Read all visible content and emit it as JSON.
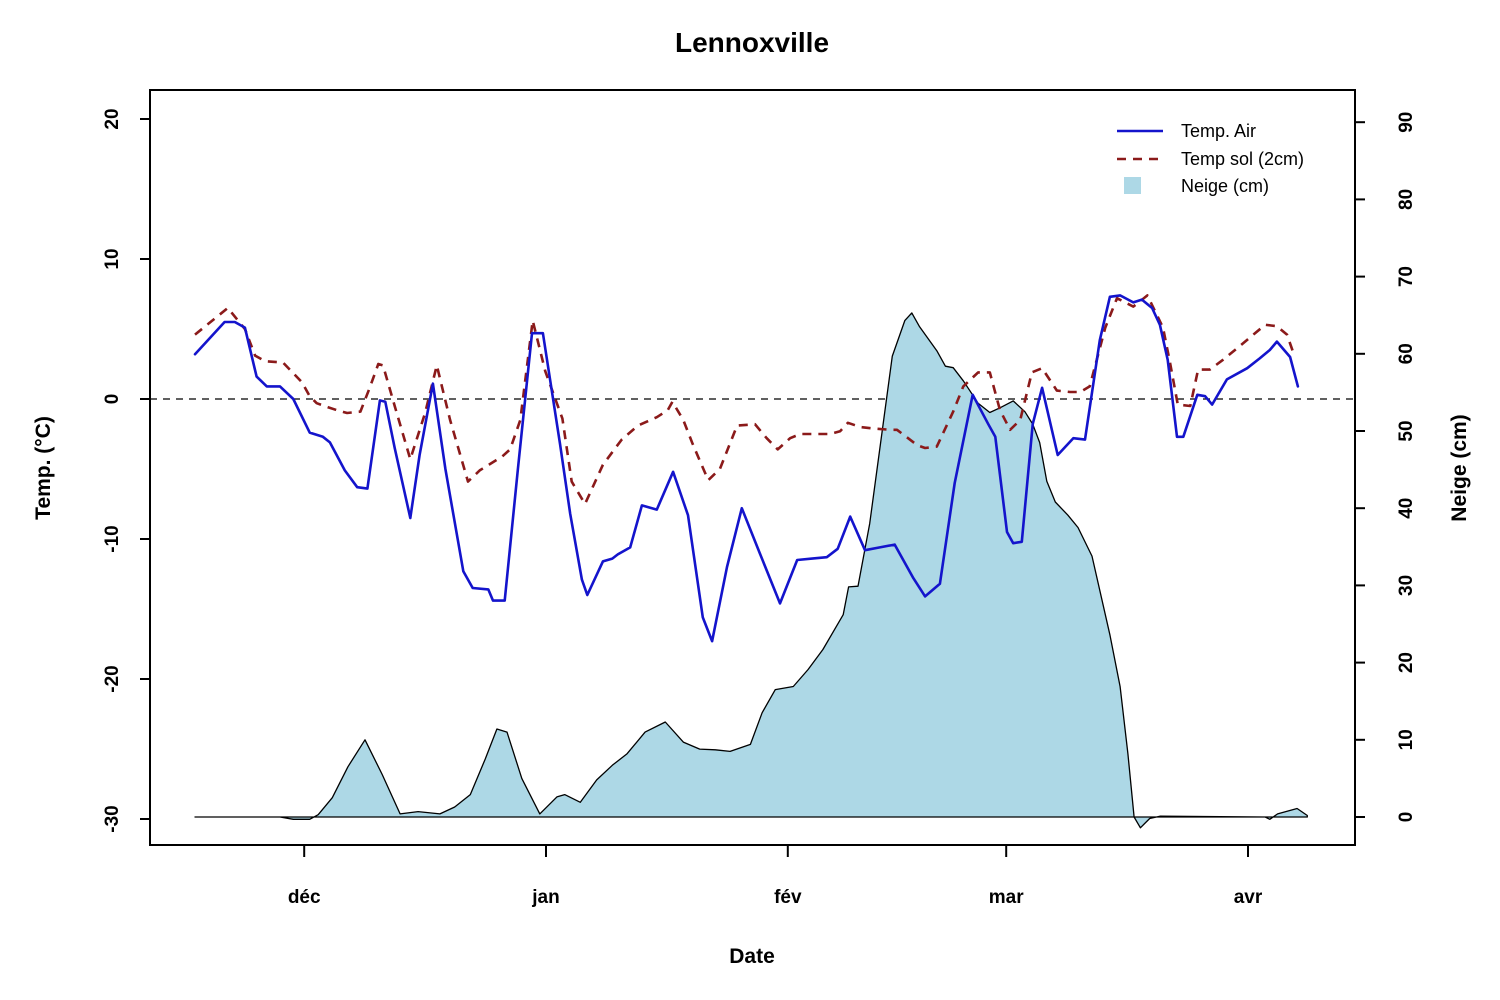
{
  "page": {
    "title": "Lennoxville"
  },
  "chart_data": {
    "type": "line",
    "title": "Lennoxville",
    "xlabel": "Date",
    "ylabel_left": "Temp. (°C)",
    "ylabel_right": "Neige (cm)",
    "x_unit": "days from series start (mid-November) to early April",
    "x_range_days": [
      0,
      143
    ],
    "x_ticks": [
      {
        "day": 14,
        "label": "déc"
      },
      {
        "day": 45,
        "label": "jan"
      },
      {
        "day": 76,
        "label": "fév"
      },
      {
        "day": 104,
        "label": "mar"
      },
      {
        "day": 135,
        "label": "avr"
      }
    ],
    "y_left": {
      "min": -30,
      "max": 20,
      "ticks": [
        20,
        10,
        0,
        -10,
        -20,
        -30
      ]
    },
    "y_right": {
      "min": 0,
      "max": 90,
      "ticks": [
        90,
        80,
        70,
        60,
        50,
        40,
        30,
        20,
        10,
        0
      ]
    },
    "zero_reference_line": {
      "axis": "left",
      "value": 0,
      "style": "dashed",
      "color": "#000000"
    },
    "grid": "off",
    "legend_position": "top-right-inside",
    "series": [
      {
        "name": "Temp. Air",
        "axis": "left",
        "style": "solid",
        "color": "#1414cc",
        "points": [
          [
            0,
            3.2
          ],
          [
            3.8,
            5.5
          ],
          [
            5.1,
            5.5
          ],
          [
            6.4,
            5.1
          ],
          [
            7.9,
            1.6
          ],
          [
            9.2,
            0.9
          ],
          [
            10.9,
            0.9
          ],
          [
            12.6,
            0.0
          ],
          [
            14.7,
            -2.4
          ],
          [
            16.4,
            -2.7
          ],
          [
            17.3,
            -3.1
          ],
          [
            19.2,
            -5.1
          ],
          [
            20.8,
            -6.3
          ],
          [
            22.1,
            -6.4
          ],
          [
            23.7,
            -0.1
          ],
          [
            24.4,
            -0.2
          ],
          [
            25.6,
            -3.5
          ],
          [
            27.6,
            -8.5
          ],
          [
            28.8,
            -4.0
          ],
          [
            30.5,
            1.1
          ],
          [
            32.1,
            -5.0
          ],
          [
            34.4,
            -12.3
          ],
          [
            35.6,
            -13.5
          ],
          [
            37.6,
            -13.6
          ],
          [
            38.2,
            -14.4
          ],
          [
            39.7,
            -14.4
          ],
          [
            41.4,
            -5.0
          ],
          [
            43.2,
            4.7
          ],
          [
            44.6,
            4.7
          ],
          [
            46.8,
            -3.2
          ],
          [
            48.1,
            -8.2
          ],
          [
            49.6,
            -12.9
          ],
          [
            50.3,
            -14.0
          ],
          [
            52.3,
            -11.6
          ],
          [
            53.5,
            -11.4
          ],
          [
            54.2,
            -11.1
          ],
          [
            55.8,
            -10.6
          ],
          [
            57.3,
            -7.6
          ],
          [
            59.2,
            -7.9
          ],
          [
            61.3,
            -5.2
          ],
          [
            63.2,
            -8.3
          ],
          [
            65.1,
            -15.6
          ],
          [
            66.3,
            -17.3
          ],
          [
            68.2,
            -12.0
          ],
          [
            70.1,
            -7.8
          ],
          [
            72.4,
            -11.0
          ],
          [
            75.0,
            -14.6
          ],
          [
            77.2,
            -11.5
          ],
          [
            79.1,
            -11.4
          ],
          [
            81.0,
            -11.3
          ],
          [
            82.4,
            -10.7
          ],
          [
            84.0,
            -8.4
          ],
          [
            85.9,
            -10.8
          ],
          [
            87.8,
            -10.6
          ],
          [
            89.7,
            -10.4
          ],
          [
            92.1,
            -12.8
          ],
          [
            93.6,
            -14.1
          ],
          [
            95.5,
            -13.2
          ],
          [
            97.4,
            -6.0
          ],
          [
            99.7,
            0.3
          ],
          [
            101.7,
            -1.8
          ],
          [
            102.6,
            -2.7
          ],
          [
            104.1,
            -9.5
          ],
          [
            104.9,
            -10.3
          ],
          [
            106.0,
            -10.2
          ],
          [
            107.4,
            -1.8
          ],
          [
            108.6,
            0.8
          ],
          [
            110.6,
            -4.0
          ],
          [
            112.6,
            -2.8
          ],
          [
            114.1,
            -2.9
          ],
          [
            116.0,
            4.2
          ],
          [
            117.3,
            7.3
          ],
          [
            118.6,
            7.4
          ],
          [
            120.3,
            6.9
          ],
          [
            121.4,
            7.1
          ],
          [
            122.7,
            6.5
          ],
          [
            123.7,
            5.3
          ],
          [
            124.7,
            2.8
          ],
          [
            125.9,
            -2.7
          ],
          [
            126.7,
            -2.7
          ],
          [
            128.5,
            0.3
          ],
          [
            129.5,
            0.2
          ],
          [
            130.4,
            -0.4
          ],
          [
            132.3,
            1.4
          ],
          [
            134.9,
            2.2
          ],
          [
            136.5,
            2.9
          ],
          [
            137.8,
            3.5
          ],
          [
            138.7,
            4.1
          ],
          [
            140.4,
            3.0
          ],
          [
            141.4,
            0.9
          ]
        ]
      },
      {
        "name": "Temp sol (2cm)",
        "axis": "left",
        "style": "dashed",
        "color": "#8b1a1a",
        "points": [
          [
            0,
            4.6
          ],
          [
            4.2,
            6.5
          ],
          [
            6.4,
            5.0
          ],
          [
            7.7,
            3.1
          ],
          [
            9.0,
            2.7
          ],
          [
            11.3,
            2.6
          ],
          [
            13.7,
            1.2
          ],
          [
            14.7,
            0.2
          ],
          [
            15.6,
            -0.3
          ],
          [
            17.1,
            -0.6
          ],
          [
            18.2,
            -0.8
          ],
          [
            19.5,
            -1.0
          ],
          [
            21.2,
            -0.9
          ],
          [
            22.4,
            0.8
          ],
          [
            23.5,
            2.5
          ],
          [
            24.1,
            2.4
          ],
          [
            25.6,
            -0.5
          ],
          [
            27.6,
            -4.3
          ],
          [
            29.5,
            -1.0
          ],
          [
            31.0,
            2.4
          ],
          [
            32.7,
            -1.5
          ],
          [
            35.0,
            -5.9
          ],
          [
            36.5,
            -5.1
          ],
          [
            39.4,
            -4.1
          ],
          [
            40.4,
            -3.6
          ],
          [
            41.7,
            -1.5
          ],
          [
            43.3,
            5.6
          ],
          [
            44.9,
            2.0
          ],
          [
            47.1,
            -1.4
          ],
          [
            48.3,
            -5.9
          ],
          [
            50.0,
            -7.5
          ],
          [
            52.3,
            -4.7
          ],
          [
            54.7,
            -2.9
          ],
          [
            56.8,
            -1.9
          ],
          [
            59.2,
            -1.3
          ],
          [
            60.6,
            -0.8
          ],
          [
            61.2,
            -0.2
          ],
          [
            62.6,
            -1.5
          ],
          [
            63.8,
            -3.2
          ],
          [
            65.8,
            -5.8
          ],
          [
            67.3,
            -5.0
          ],
          [
            69.5,
            -1.9
          ],
          [
            71.8,
            -1.8
          ],
          [
            73.3,
            -2.8
          ],
          [
            74.7,
            -3.6
          ],
          [
            76.3,
            -2.8
          ],
          [
            77.6,
            -2.5
          ],
          [
            81.4,
            -2.5
          ],
          [
            82.7,
            -2.3
          ],
          [
            83.7,
            -1.7
          ],
          [
            85.3,
            -2.0
          ],
          [
            86.9,
            -2.1
          ],
          [
            89.1,
            -2.2
          ],
          [
            90.0,
            -2.2
          ],
          [
            92.6,
            -3.3
          ],
          [
            93.6,
            -3.5
          ],
          [
            95.1,
            -3.4
          ],
          [
            97.2,
            -0.9
          ],
          [
            98.5,
            0.9
          ],
          [
            100.4,
            1.9
          ],
          [
            101.9,
            1.9
          ],
          [
            103.2,
            -0.8
          ],
          [
            104.5,
            -2.2
          ],
          [
            105.8,
            -1.5
          ],
          [
            107.3,
            1.9
          ],
          [
            108.6,
            2.2
          ],
          [
            110.5,
            0.6
          ],
          [
            112.2,
            0.5
          ],
          [
            113.5,
            0.5
          ],
          [
            114.7,
            0.9
          ],
          [
            116.7,
            5.1
          ],
          [
            118.2,
            7.2
          ],
          [
            120.3,
            6.6
          ],
          [
            122.1,
            7.4
          ],
          [
            124.1,
            5.1
          ],
          [
            125.0,
            2.6
          ],
          [
            126.0,
            -0.4
          ],
          [
            127.6,
            -0.5
          ],
          [
            128.6,
            2.1
          ],
          [
            130.1,
            2.1
          ],
          [
            131.8,
            2.8
          ],
          [
            134.2,
            3.9
          ],
          [
            135.9,
            4.7
          ],
          [
            137.2,
            5.3
          ],
          [
            138.7,
            5.2
          ],
          [
            140.0,
            4.6
          ],
          [
            141.0,
            3.0
          ]
        ]
      },
      {
        "name": "Neige (cm)",
        "axis": "right",
        "style": "filled-area",
        "color": "#add8e6",
        "outline_color": "#000000",
        "points": [
          [
            0,
            0
          ],
          [
            10.9,
            0
          ],
          [
            12.6,
            -0.3
          ],
          [
            14.7,
            -0.3
          ],
          [
            15.8,
            0.3
          ],
          [
            17.6,
            2.5
          ],
          [
            19.6,
            6.5
          ],
          [
            21.8,
            10.0
          ],
          [
            24.0,
            5.5
          ],
          [
            26.3,
            0.4
          ],
          [
            28.6,
            0.7
          ],
          [
            31.4,
            0.4
          ],
          [
            33.3,
            1.3
          ],
          [
            35.3,
            2.9
          ],
          [
            37.2,
            7.5
          ],
          [
            38.7,
            11.4
          ],
          [
            40.0,
            11.0
          ],
          [
            41.9,
            5.0
          ],
          [
            44.2,
            0.4
          ],
          [
            46.4,
            2.6
          ],
          [
            47.4,
            2.9
          ],
          [
            49.4,
            1.9
          ],
          [
            51.5,
            4.8
          ],
          [
            53.5,
            6.7
          ],
          [
            55.4,
            8.2
          ],
          [
            57.7,
            11.0
          ],
          [
            60.3,
            12.3
          ],
          [
            62.6,
            9.7
          ],
          [
            64.7,
            8.8
          ],
          [
            66.7,
            8.7
          ],
          [
            68.6,
            8.5
          ],
          [
            71.2,
            9.4
          ],
          [
            72.7,
            13.5
          ],
          [
            74.4,
            16.5
          ],
          [
            76.7,
            16.9
          ],
          [
            78.6,
            19.1
          ],
          [
            80.5,
            21.7
          ],
          [
            83.1,
            26.2
          ],
          [
            83.8,
            29.8
          ],
          [
            85.0,
            29.9
          ],
          [
            86.5,
            38.0
          ],
          [
            88.1,
            50.0
          ],
          [
            89.4,
            59.7
          ],
          [
            91.0,
            64.3
          ],
          [
            91.9,
            65.3
          ],
          [
            92.9,
            63.5
          ],
          [
            95.1,
            60.4
          ],
          [
            96.2,
            58.4
          ],
          [
            97.2,
            58.2
          ],
          [
            98.5,
            56.5
          ],
          [
            100.4,
            53.6
          ],
          [
            101.9,
            52.4
          ],
          [
            103.2,
            53.0
          ],
          [
            104.9,
            53.9
          ],
          [
            106.4,
            52.5
          ],
          [
            107.4,
            50.9
          ],
          [
            108.3,
            48.5
          ],
          [
            109.2,
            43.5
          ],
          [
            110.3,
            40.8
          ],
          [
            111.9,
            39.1
          ],
          [
            113.2,
            37.5
          ],
          [
            115.0,
            33.8
          ],
          [
            117.3,
            23.6
          ],
          [
            118.6,
            16.9
          ],
          [
            119.6,
            8.2
          ],
          [
            120.4,
            0.0
          ],
          [
            121.2,
            -1.4
          ],
          [
            122.4,
            -0.2
          ],
          [
            123.7,
            0.1
          ],
          [
            137.2,
            0.0
          ],
          [
            137.8,
            -0.3
          ],
          [
            138.8,
            0.4
          ],
          [
            141.3,
            1.1
          ],
          [
            142.6,
            0.2
          ]
        ]
      }
    ]
  }
}
